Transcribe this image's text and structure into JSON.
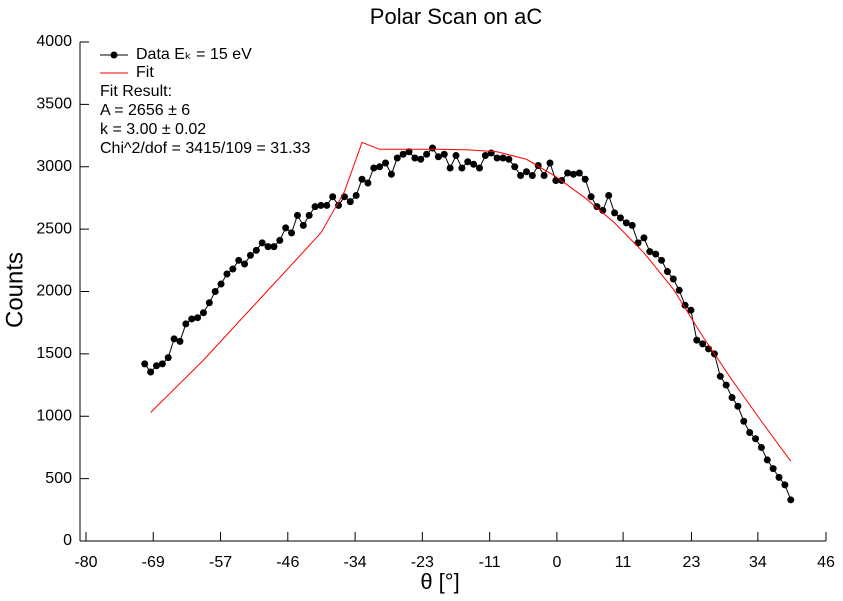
{
  "chart_data": {
    "type": "line",
    "title": "Polar Scan on aC",
    "x_label": "θ [°]",
    "y_label": "Counts",
    "annotations": [
      "Fit Result:",
      "A = 2656 ± 6",
      "k = 3.00 ± 0.02",
      "Chi^2/dof = 3415/109 = 31.33"
    ],
    "xlim": [
      -80,
      46
    ],
    "ylim": [
      0,
      4000
    ],
    "xticks": [
      {
        "value": -80,
        "label": "-80"
      },
      {
        "value": -68.55,
        "label": "-69"
      },
      {
        "value": -57.09,
        "label": "-57"
      },
      {
        "value": -45.64,
        "label": "-46"
      },
      {
        "value": -34.18,
        "label": "-34"
      },
      {
        "value": -22.73,
        "label": "-23"
      },
      {
        "value": -11.27,
        "label": "-11"
      },
      {
        "value": 0.18,
        "label": "0"
      },
      {
        "value": 11.45,
        "label": "11"
      },
      {
        "value": 23.09,
        "label": "23"
      },
      {
        "value": 34.4,
        "label": "34"
      },
      {
        "value": 46,
        "label": "46"
      }
    ],
    "yticks": [
      0,
      500,
      1000,
      1500,
      2000,
      2500,
      3000,
      3500,
      4000
    ],
    "legend": "top-left",
    "series": [
      {
        "name": "Data Eₖ = 15 eV",
        "color": "#000000",
        "markers": true,
        "x": [
          -70,
          -69,
          -68,
          -67,
          -66,
          -65,
          -64,
          -63,
          -62,
          -61,
          -60,
          -59,
          -58,
          -57,
          -56,
          -55,
          -54,
          -53,
          -52,
          -51,
          -50,
          -49,
          -48,
          -47,
          -46,
          -45,
          -44,
          -43,
          -42,
          -41,
          -40,
          -39,
          -38,
          -37,
          -36,
          -35,
          -34,
          -33,
          -32,
          -31,
          -30,
          -29,
          -28,
          -27,
          -26,
          -25,
          -24,
          -23,
          -22,
          -21,
          -20,
          -19,
          -18,
          -17,
          -16,
          -15,
          -14,
          -13,
          -12,
          -11,
          -10,
          -9,
          -8,
          -7,
          -6,
          -5,
          -4,
          -3,
          -2,
          -1,
          0,
          1,
          2,
          3,
          4,
          5,
          6,
          7,
          8,
          9,
          10,
          11,
          12,
          13,
          14,
          15,
          16,
          17,
          18,
          19,
          20,
          21,
          22,
          23,
          24,
          25,
          26,
          27,
          28,
          29,
          30,
          31,
          32,
          33,
          34,
          35,
          36,
          37,
          38,
          39,
          40
        ],
        "values": [
          1420,
          1355,
          1405,
          1420,
          1470,
          1620,
          1600,
          1740,
          1780,
          1790,
          1830,
          1910,
          2000,
          2060,
          2140,
          2180,
          2250,
          2220,
          2290,
          2330,
          2390,
          2360,
          2360,
          2410,
          2510,
          2470,
          2610,
          2530,
          2610,
          2680,
          2690,
          2690,
          2760,
          2690,
          2760,
          2720,
          2770,
          2900,
          2870,
          2990,
          3000,
          3030,
          2940,
          3070,
          3100,
          3120,
          3070,
          3060,
          3100,
          3150,
          3080,
          3100,
          2990,
          3090,
          2990,
          3040,
          3020,
          2990,
          3090,
          3110,
          3070,
          3070,
          3060,
          3000,
          2930,
          2960,
          2930,
          3010,
          2930,
          3030,
          2890,
          2890,
          2950,
          2940,
          2950,
          2900,
          2760,
          2680,
          2650,
          2770,
          2630,
          2590,
          2550,
          2530,
          2390,
          2430,
          2320,
          2300,
          2250,
          2160,
          2100,
          2010,
          1890,
          1850,
          1610,
          1580,
          1540,
          1500,
          1320,
          1250,
          1150,
          1080,
          960,
          870,
          820,
          750,
          650,
          580,
          510,
          450,
          330
        ]
      },
      {
        "name": "Fit",
        "color": "#ff0000",
        "markers": false,
        "x": [
          -69,
          -60,
          -50,
          -40,
          -36,
          -33,
          -30,
          -25,
          -20,
          -15,
          -10,
          -5,
          0,
          5,
          10,
          15,
          20,
          25,
          30,
          35,
          40
        ],
        "values": [
          1030,
          1450,
          1960,
          2470,
          2800,
          3195,
          3140,
          3140,
          3140,
          3135,
          3120,
          3060,
          2920,
          2750,
          2550,
          2310,
          2020,
          1640,
          1290,
          960,
          640
        ]
      }
    ]
  }
}
